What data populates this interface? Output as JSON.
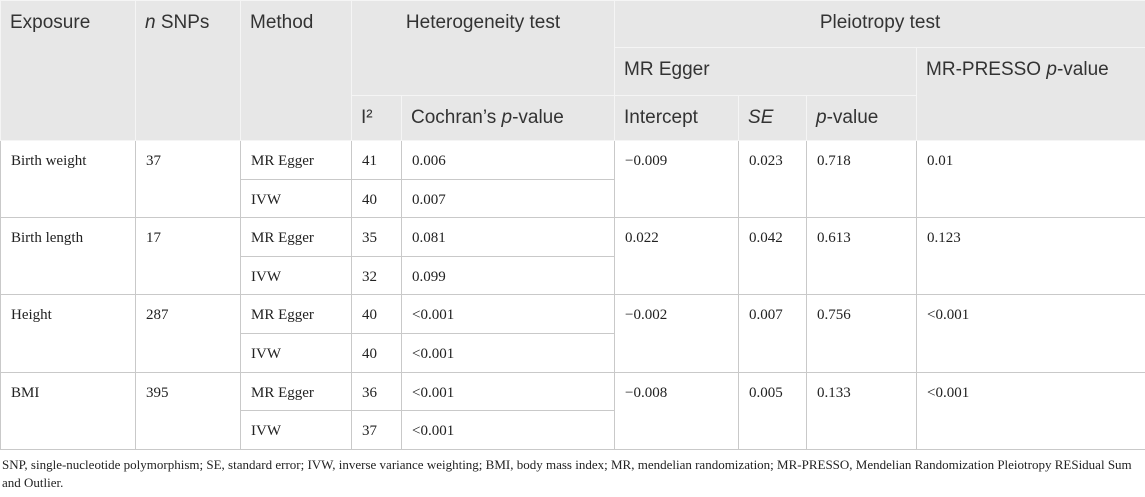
{
  "header": {
    "exposure": "Exposure",
    "n_snps": [
      "n",
      " SNPs"
    ],
    "method": "Method",
    "heterogeneity": "Heterogeneity test",
    "pleiotropy": "Pleiotropy test",
    "mr_egger": "MR Egger",
    "mr_presso": [
      "MR-PRESSO ",
      "p",
      "-value"
    ],
    "i2": "I²",
    "cochran": [
      "Cochran’s ",
      "p",
      "-value"
    ],
    "intercept": "Intercept",
    "se": "SE",
    "p_value": [
      "p",
      "-value"
    ]
  },
  "groups": [
    {
      "exposure": "Birth weight",
      "n_snps": "37",
      "rows": [
        {
          "method": "MR Egger",
          "i2": "41",
          "cochran_p": "0.006"
        },
        {
          "method": "IVW",
          "i2": "40",
          "cochran_p": "0.007"
        }
      ],
      "intercept": "−0.009",
      "se": "0.023",
      "p_value": "0.718",
      "mr_presso_p": "0.01"
    },
    {
      "exposure": "Birth length",
      "n_snps": "17",
      "rows": [
        {
          "method": "MR Egger",
          "i2": "35",
          "cochran_p": "0.081"
        },
        {
          "method": "IVW",
          "i2": "32",
          "cochran_p": "0.099"
        }
      ],
      "intercept": "0.022",
      "se": "0.042",
      "p_value": "0.613",
      "mr_presso_p": "0.123"
    },
    {
      "exposure": "Height",
      "n_snps": "287",
      "rows": [
        {
          "method": "MR Egger",
          "i2": "40",
          "cochran_p": "<0.001"
        },
        {
          "method": "IVW",
          "i2": "40",
          "cochran_p": "<0.001"
        }
      ],
      "intercept": "−0.002",
      "se": "0.007",
      "p_value": "0.756",
      "mr_presso_p": "<0.001"
    },
    {
      "exposure": "BMI",
      "n_snps": "395",
      "rows": [
        {
          "method": "MR Egger",
          "i2": "36",
          "cochran_p": "<0.001"
        },
        {
          "method": "IVW",
          "i2": "37",
          "cochran_p": "<0.001"
        }
      ],
      "intercept": "−0.008",
      "se": "0.005",
      "p_value": "0.133",
      "mr_presso_p": "<0.001"
    }
  ],
  "footnote": "SNP, single-nucleotide polymorphism; SE, standard error; IVW, inverse variance weighting; BMI, body mass index; MR, mendelian randomization; MR-PRESSO, Mendelian Randomization Pleiotropy RESidual Sum and Outlier."
}
